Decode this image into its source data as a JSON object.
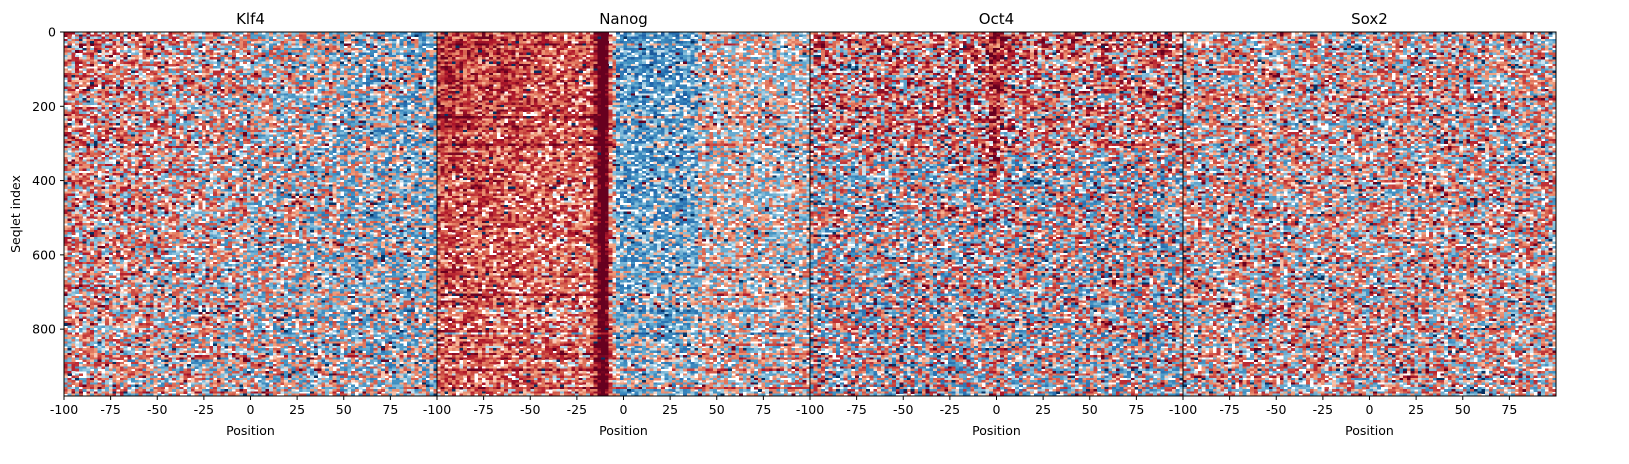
{
  "chart_data": {
    "type": "heatmap",
    "colormap": "RdBu_r (red = positive, blue = negative)",
    "colors": {
      "strong_positive": "#67001f",
      "positive": "#d6604d",
      "neutral": "#ffffff",
      "negative": "#4393c3",
      "strong_negative": "#053061"
    },
    "ylabel": "Seqlet index",
    "ylim": [
      980,
      0
    ],
    "y_ticks": [
      0,
      200,
      400,
      600,
      800
    ],
    "xlim": [
      -100,
      100
    ],
    "x_ticks": [
      "-100",
      "-75",
      "-50",
      "-25",
      "0",
      "25",
      "50",
      "75"
    ],
    "panels": [
      {
        "title": "Klf4",
        "xlabel": "Position",
        "pattern": "red-left"
      },
      {
        "title": "Nanog",
        "xlabel": "Position",
        "pattern": "strong-red-left-band-at-minus-12"
      },
      {
        "title": "Oct4",
        "xlabel": "Position",
        "pattern": "mixed"
      },
      {
        "title": "Sox2",
        "xlabel": "Position",
        "pattern": "weak-mixed"
      }
    ]
  }
}
